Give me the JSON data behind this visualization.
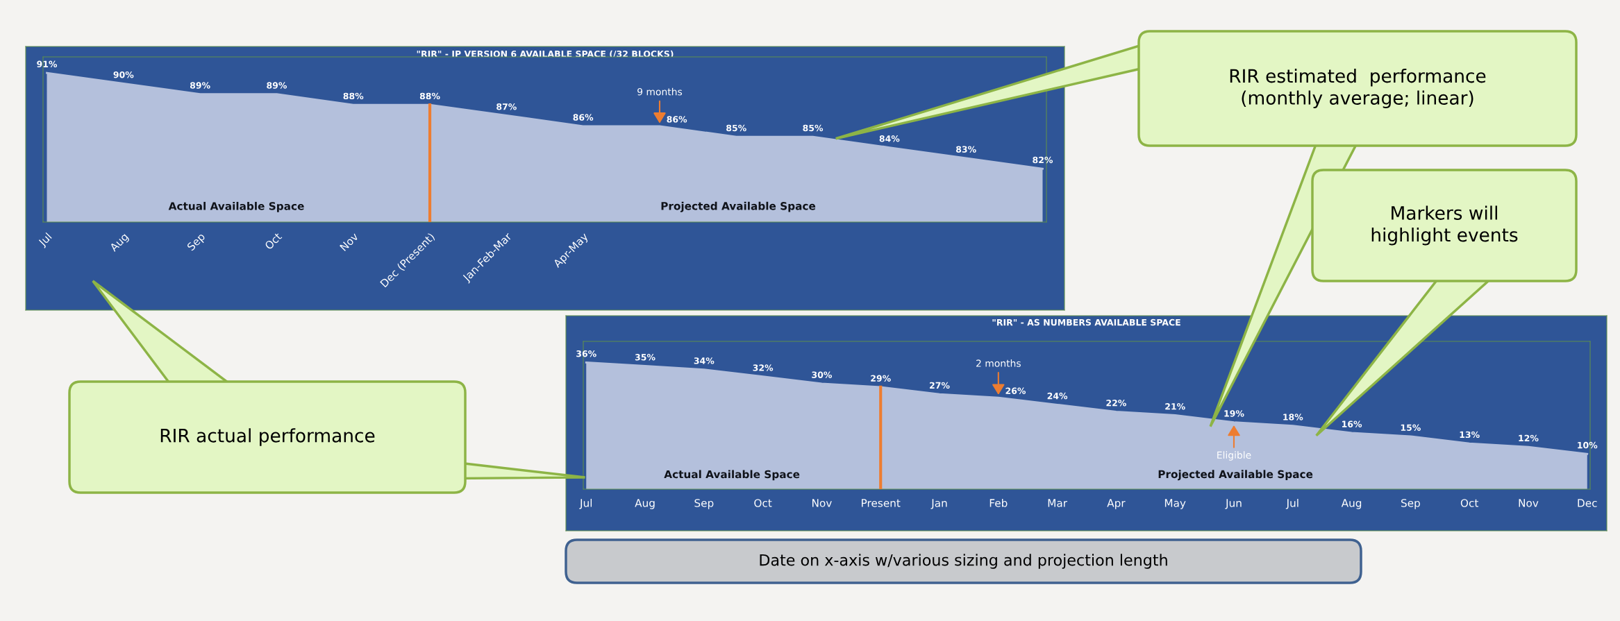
{
  "chart_data": [
    {
      "type": "area",
      "title": "\"RIR\" - IP VERSION 6 AVAILABLE SPACE (/32 BLOCKS)",
      "categories": [
        "Jul",
        "Aug",
        "Sep",
        "Oct",
        "Nov",
        "Dec (Present)",
        "Jan-Feb-Mar",
        "Apr-May",
        null,
        null,
        null,
        null,
        null,
        null
      ],
      "values": [
        91,
        90,
        89,
        89,
        88,
        88,
        87,
        86,
        86,
        85,
        85,
        84,
        83,
        82
      ],
      "value_labels": [
        "91%",
        "90%",
        "89%",
        "89%",
        "88%",
        "88%",
        "87%",
        "86%",
        "86%",
        "85%",
        "85%",
        "84%",
        "83%",
        "82%"
      ],
      "color": "#b4c0dc",
      "ylim": [
        77,
        92.5
      ],
      "ref_lines": [
        {
          "axis": "x",
          "value": "Dec (Present)",
          "label": null,
          "color": "#ed7d31"
        }
      ],
      "annotations": [
        "Actual Available Space",
        "Projected Available Space",
        {
          "text": "9 months",
          "y": 86
        }
      ]
    },
    {
      "type": "area",
      "title": "\"RIR\" - AS NUMBERS AVAILABLE SPACE",
      "categories": [
        "Jul",
        "Aug",
        "Sep",
        "Oct",
        "Nov",
        "Present",
        "Jan",
        "Feb",
        "Mar",
        "Apr",
        "May",
        "Jun",
        "Jul",
        "Aug",
        "Sep",
        "Oct",
        "Nov",
        "Dec"
      ],
      "values": [
        36,
        35,
        34,
        32,
        30,
        29,
        27,
        26,
        24,
        22,
        21,
        19,
        18,
        16,
        15,
        13,
        12,
        10
      ],
      "value_labels": [
        "36%",
        "35%",
        "34%",
        "32%",
        "30%",
        "29%",
        "27%",
        "26%",
        "24%",
        "22%",
        "21%",
        "19%",
        "18%",
        "16%",
        "15%",
        "13%",
        "12%",
        "10%"
      ],
      "color": "#b4c0dc",
      "ylim": [
        0,
        42
      ],
      "ref_lines": [
        {
          "axis": "x",
          "value": "Present",
          "label": null,
          "color": "#ed7d31"
        }
      ],
      "annotations": [
        "Actual Available Space",
        "Projected Available Space",
        {
          "text": "2 months",
          "x": "Feb",
          "y": 26
        },
        {
          "text": "Eligible",
          "x": "Jun",
          "y": 19
        }
      ]
    },
    {
      "type": "other",
      "annotations": [
        "RIR estimated  performance\n(monthly average; linear)",
        "Markers will\nhighlight events",
        "RIR actual performance",
        "Date on x-axis w/various sizing and projection length"
      ]
    }
  ]
}
